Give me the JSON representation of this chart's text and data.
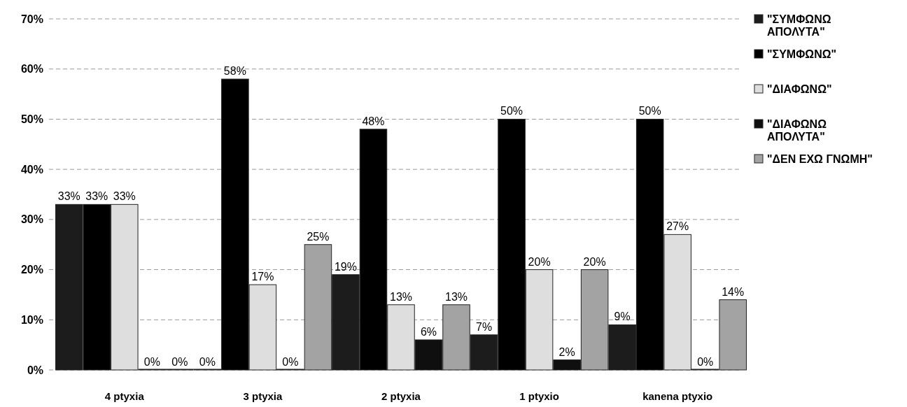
{
  "chart_data": {
    "type": "bar",
    "categories": [
      "4 ptyxia",
      "3 ptyxia",
      "2 ptyxia",
      "1 ptyxio",
      "kanena ptyxio"
    ],
    "series": [
      {
        "name": "\"ΣΥΜΦΩΝΩ ΑΠΟΛΥΤΑ\"",
        "color": "#1c1c1c",
        "values": [
          33,
          0,
          19,
          7,
          9
        ],
        "value_labels": [
          "33%",
          "0%",
          "19%",
          "7%",
          "9%"
        ]
      },
      {
        "name": "\"ΣΥΜΦΩΝΩ\"",
        "color": "#000000",
        "values": [
          33,
          58,
          48,
          50,
          50
        ],
        "value_labels": [
          "33%",
          "58%",
          "48%",
          "50%",
          "50%"
        ]
      },
      {
        "name": "\"ΔΙΑΦΩΝΩ\"",
        "color": "#dedede",
        "values": [
          33,
          17,
          13,
          20,
          27
        ],
        "value_labels": [
          "33%",
          "17%",
          "13%",
          "20%",
          "27%"
        ]
      },
      {
        "name": "\"ΔΙΑΦΩΝΩ ΑΠΟΛΥΤΑ\"",
        "color": "#0f0f0f",
        "values": [
          0,
          0,
          6,
          2,
          0
        ],
        "value_labels": [
          "0%",
          "0%",
          "6%",
          "2%",
          "0%"
        ]
      },
      {
        "name": "\"ΔΕΝ ΕΧΩ ΓΝΩΜΗ\"",
        "color": "#a3a3a3",
        "values": [
          0,
          25,
          13,
          20,
          14
        ],
        "value_labels": [
          "0%",
          "25%",
          "13%",
          "20%",
          "14%"
        ]
      }
    ],
    "ylim": [
      0,
      70
    ],
    "yticks": [
      {
        "value": 0,
        "label": "0%"
      },
      {
        "value": 10,
        "label": "10%"
      },
      {
        "value": 20,
        "label": "20%"
      },
      {
        "value": 30,
        "label": "30%"
      },
      {
        "value": 40,
        "label": "40%"
      },
      {
        "value": 50,
        "label": "50%"
      },
      {
        "value": 60,
        "label": "60%"
      },
      {
        "value": 70,
        "label": "70%"
      }
    ],
    "grid": "y",
    "legend": "right"
  }
}
